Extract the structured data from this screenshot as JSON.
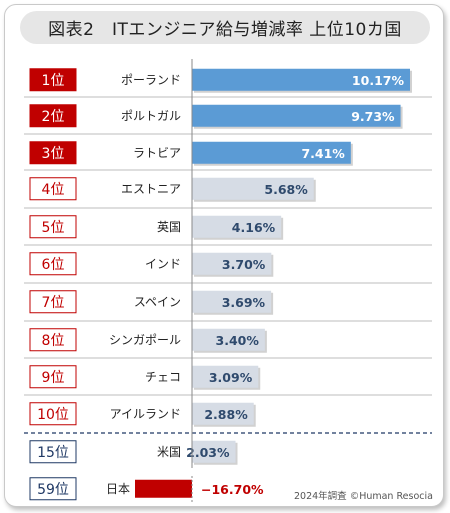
{
  "title": "図表2　ITエンジニア給与増減率 上位10カ国",
  "note": "2024年調査 ©Human Resocia",
  "colors": {
    "highlight_red": "#c00000",
    "top_bar": "#5b9bd5",
    "other_bar": "#d6dce5",
    "negative_bar": "#c00000",
    "negative_text": "#c00000",
    "value_dark": "#2f4a6d",
    "value_light": "#ffffff"
  },
  "chart_data": {
    "type": "bar",
    "orientation": "horizontal",
    "xlim": [
      -16.7,
      10.17
    ],
    "unit": "%",
    "rows": [
      {
        "rank": "1位",
        "country": "ポーランド",
        "value": 10.17,
        "label": "10.17%",
        "style": "top"
      },
      {
        "rank": "2位",
        "country": "ポルトガル",
        "value": 9.73,
        "label": "9.73%",
        "style": "top"
      },
      {
        "rank": "3位",
        "country": "ラトビア",
        "value": 7.41,
        "label": "7.41%",
        "style": "top"
      },
      {
        "rank": "4位",
        "country": "エストニア",
        "value": 5.68,
        "label": "5.68%",
        "style": "other"
      },
      {
        "rank": "5位",
        "country": "英国",
        "value": 4.16,
        "label": "4.16%",
        "style": "other"
      },
      {
        "rank": "6位",
        "country": "インド",
        "value": 3.7,
        "label": "3.70%",
        "style": "other"
      },
      {
        "rank": "7位",
        "country": "スペイン",
        "value": 3.69,
        "label": "3.69%",
        "style": "other"
      },
      {
        "rank": "8位",
        "country": "シンガポール",
        "value": 3.4,
        "label": "3.40%",
        "style": "other"
      },
      {
        "rank": "9位",
        "country": "チェコ",
        "value": 3.09,
        "label": "3.09%",
        "style": "other"
      },
      {
        "rank": "10位",
        "country": "アイルランド",
        "value": 2.88,
        "label": "2.88%",
        "style": "other"
      },
      {
        "rank": "15位",
        "country": "米国",
        "value": 2.03,
        "label": "2.03%",
        "style": "reference"
      },
      {
        "rank": "59位",
        "country": "日本",
        "value": -16.7,
        "label": "−16.70%",
        "style": "negative"
      }
    ]
  }
}
